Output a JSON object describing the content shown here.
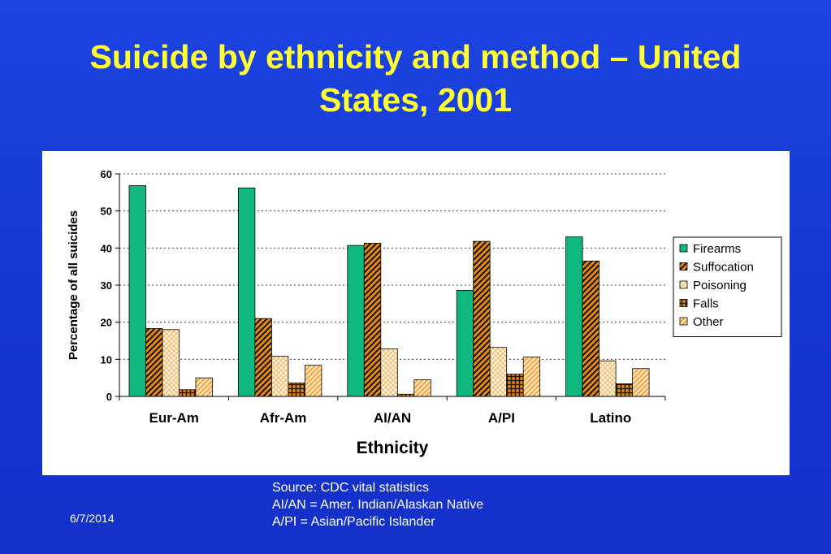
{
  "slide": {
    "title_line1": "Suicide by ethnicity and method – United",
    "title_line2": "States, 2001",
    "footnotes": [
      "Source: CDC vital statistics",
      "AI/AN = Amer. Indian/Alaskan Native",
      "A/PI = Asian/Pacific Islander"
    ],
    "date": "6/7/2014",
    "background_color": "#1a3fdc",
    "title_color": "#ffff33"
  },
  "chart_data": {
    "type": "bar",
    "title": "",
    "xlabel": "Ethnicity",
    "ylabel": "Percentage of all suicides",
    "ylim": [
      0,
      60
    ],
    "yticks": [
      0,
      10,
      20,
      30,
      40,
      50,
      60
    ],
    "grid": "horizontal dotted",
    "legend_position": "right",
    "categories": [
      "Eur-Am",
      "Afr-Am",
      "AI/AN",
      "A/PI",
      "Latino"
    ],
    "series": [
      {
        "name": "Firearms",
        "values": [
          56.8,
          56.2,
          40.7,
          28.6,
          43.0
        ],
        "color": "#10b880",
        "pattern": "solid"
      },
      {
        "name": "Suffocation",
        "values": [
          18.3,
          21.0,
          41.3,
          41.8,
          36.5
        ],
        "color": "#ee8a10",
        "pattern": "diagonal-dark"
      },
      {
        "name": "Poisoning",
        "values": [
          18.0,
          10.8,
          12.8,
          13.2,
          9.6
        ],
        "color": "#f7d9a0",
        "pattern": "crosshatch-light"
      },
      {
        "name": "Falls",
        "values": [
          1.8,
          3.6,
          0.6,
          6.0,
          3.4
        ],
        "color": "#ee8a10",
        "pattern": "grid-dark"
      },
      {
        "name": "Other",
        "values": [
          5.0,
          8.4,
          4.5,
          10.6,
          7.5
        ],
        "color": "#f6a640",
        "pattern": "diagonal-light"
      }
    ]
  }
}
